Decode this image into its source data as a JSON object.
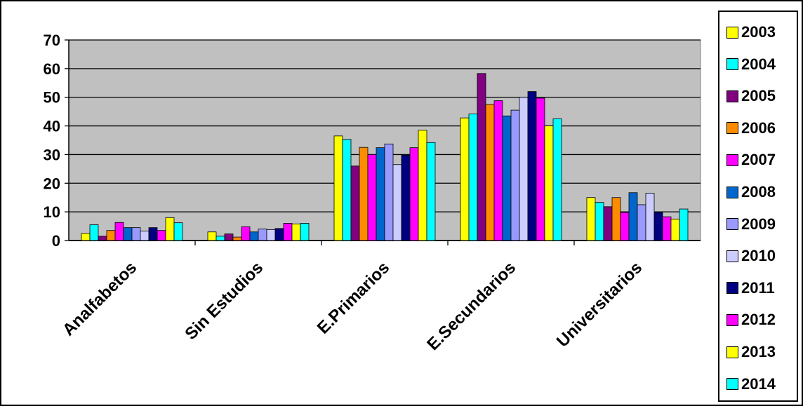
{
  "chart_data": {
    "type": "bar",
    "title": "",
    "xlabel": "",
    "ylabel": "",
    "ylim": [
      0,
      70
    ],
    "yticks": [
      0,
      10,
      20,
      30,
      40,
      50,
      60,
      70
    ],
    "grid": true,
    "legend_position": "right",
    "categories": [
      "Analfabetos",
      "Sin Estudios",
      "E.Primarios",
      "E.Secundarios",
      "Universitarios"
    ],
    "series": [
      {
        "name": "2003",
        "color": "#FFFF00",
        "values": [
          2.5,
          3.0,
          36.5,
          42.8,
          15.0
        ]
      },
      {
        "name": "2004",
        "color": "#00FFFF",
        "values": [
          5.5,
          1.5,
          35.3,
          44.2,
          13.3
        ]
      },
      {
        "name": "2005",
        "color": "#800080",
        "values": [
          1.5,
          2.3,
          26.0,
          58.3,
          11.8
        ]
      },
      {
        "name": "2006",
        "color": "#FF8C00",
        "values": [
          3.5,
          1.2,
          32.5,
          47.5,
          15.0
        ]
      },
      {
        "name": "2007",
        "color": "#FF00FF",
        "values": [
          6.3,
          4.8,
          30.0,
          48.8,
          9.8
        ]
      },
      {
        "name": "2008",
        "color": "#0066CC",
        "values": [
          4.5,
          3.0,
          32.4,
          43.5,
          16.7
        ]
      },
      {
        "name": "2009",
        "color": "#9999FF",
        "values": [
          4.5,
          4.0,
          33.7,
          45.5,
          12.5
        ]
      },
      {
        "name": "2010",
        "color": "#CCCCFF",
        "values": [
          3.3,
          3.8,
          26.5,
          50.0,
          16.5
        ]
      },
      {
        "name": "2011",
        "color": "#000080",
        "values": [
          4.5,
          4.2,
          29.8,
          52.0,
          9.8
        ]
      },
      {
        "name": "2012",
        "color": "#FF00FF",
        "values": [
          3.5,
          6.0,
          32.4,
          49.7,
          8.3
        ]
      },
      {
        "name": "2013",
        "color": "#FFFF00",
        "values": [
          8.0,
          5.8,
          38.5,
          40.0,
          7.5
        ]
      },
      {
        "name": "2014",
        "color": "#00FFFF",
        "values": [
          6.2,
          6.0,
          34.2,
          42.5,
          11.0
        ]
      }
    ],
    "plot_background": "#C0C0C0"
  }
}
